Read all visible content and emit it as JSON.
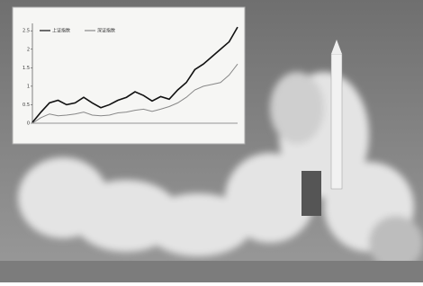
{
  "chart_data": {
    "type": "line",
    "categories": [
      null,
      null,
      null,
      null,
      null,
      null,
      null,
      null,
      null,
      null,
      null,
      null,
      null,
      null,
      null,
      null,
      null,
      null,
      null,
      null,
      null,
      null,
      null,
      null,
      null
    ],
    "series": [
      {
        "name": "上证指数",
        "color": "#111111",
        "values": [
          0.02,
          0.3,
          0.55,
          0.62,
          0.5,
          0.55,
          0.7,
          0.55,
          0.42,
          0.5,
          0.62,
          0.7,
          0.85,
          0.75,
          0.6,
          0.72,
          0.65,
          0.9,
          1.1,
          1.45,
          1.6,
          1.8,
          2.0,
          2.2,
          2.6
        ]
      },
      {
        "name": "深证指数",
        "color": "#888888",
        "values": [
          0.0,
          0.15,
          0.25,
          0.2,
          0.22,
          0.25,
          0.3,
          0.22,
          0.2,
          0.22,
          0.28,
          0.3,
          0.35,
          0.38,
          0.32,
          0.38,
          0.45,
          0.55,
          0.7,
          0.9,
          1.0,
          1.05,
          1.1,
          1.3,
          1.6
        ]
      }
    ],
    "ylim": [
      0,
      2.7
    ],
    "yticks": [
      0,
      0.5,
      1,
      1.5,
      2,
      2.5
    ],
    "legend": "top-left"
  }
}
